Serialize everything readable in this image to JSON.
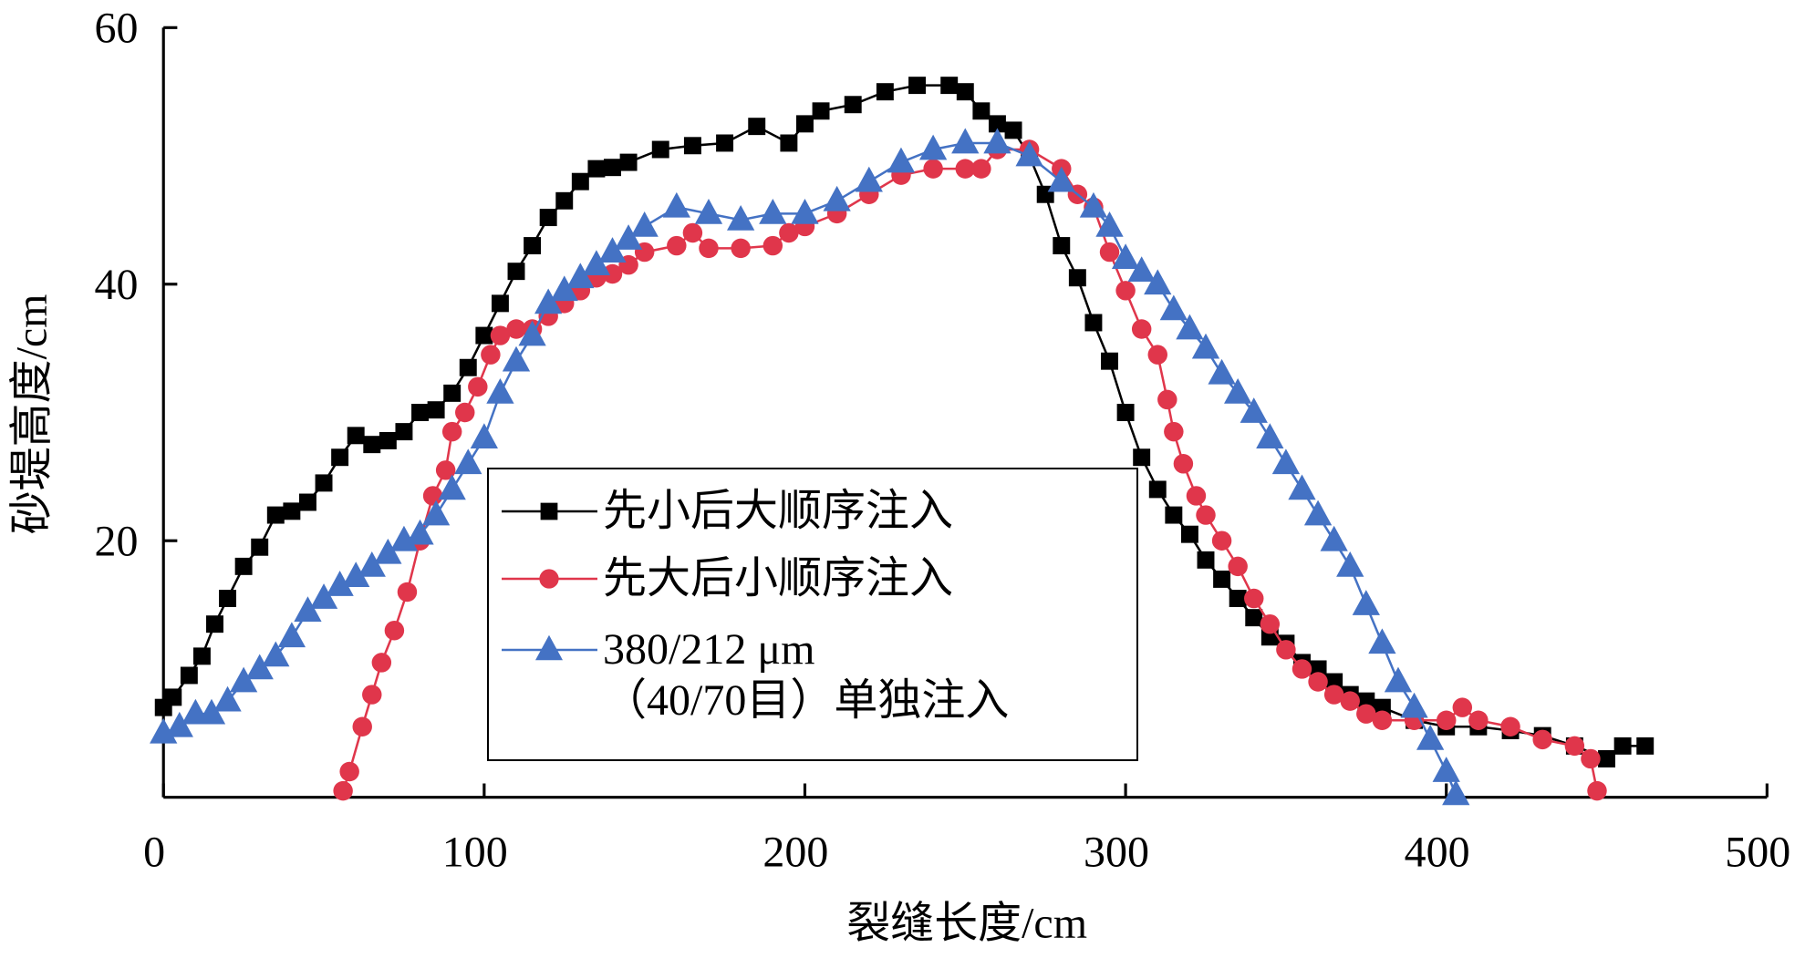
{
  "chart_data": {
    "type": "line",
    "xlabel": "裂缝长度/cm",
    "ylabel": "砂堤高度/cm",
    "xlim": [
      0,
      500
    ],
    "ylim": [
      0,
      60
    ],
    "xticks": [
      0,
      100,
      200,
      300,
      400,
      500
    ],
    "yticks": [
      20,
      40,
      60
    ],
    "series": [
      {
        "name": "先小后大顺序注入",
        "color": "#000000",
        "marker": "square",
        "x": [
          0,
          3,
          8,
          12,
          16,
          20,
          25,
          30,
          35,
          40,
          45,
          50,
          55,
          60,
          65,
          70,
          75,
          80,
          85,
          90,
          95,
          100,
          105,
          110,
          115,
          120,
          125,
          130,
          135,
          140,
          145,
          155,
          165,
          175,
          185,
          195,
          200,
          205,
          215,
          225,
          235,
          245,
          250,
          255,
          260,
          265,
          270,
          275,
          280,
          285,
          290,
          295,
          300,
          305,
          310,
          315,
          320,
          325,
          330,
          335,
          340,
          345,
          350,
          355,
          360,
          365,
          370,
          375,
          380,
          390,
          400,
          410,
          420,
          430,
          440,
          450,
          455,
          462
        ],
        "values": [
          7,
          7.8,
          9.5,
          11,
          13.5,
          15.5,
          18,
          19.5,
          22,
          22.3,
          23,
          24.5,
          26.5,
          28.2,
          27.5,
          27.8,
          28.5,
          30,
          30.2,
          31.5,
          33.5,
          36,
          38.5,
          41,
          43,
          45.2,
          46.5,
          48,
          49,
          49.1,
          49.5,
          50.5,
          50.8,
          51,
          52.3,
          51,
          52.5,
          53.5,
          54,
          55,
          55.5,
          55.5,
          55,
          53.5,
          52.5,
          52,
          50,
          47,
          43,
          40.5,
          37,
          34,
          30,
          26.5,
          24,
          22,
          20.5,
          18.5,
          17,
          15.5,
          14,
          12.5,
          12,
          10.5,
          10,
          9,
          8,
          7.5,
          7,
          6,
          5.5,
          5.5,
          5.2,
          4.8,
          4,
          3,
          4,
          4
        ]
      },
      {
        "name": "先大后小顺序注入",
        "color": "#e0364b",
        "marker": "circle",
        "x": [
          56,
          58,
          62,
          65,
          68,
          72,
          76,
          80,
          84,
          88,
          90,
          94,
          98,
          102,
          105,
          110,
          115,
          120,
          125,
          130,
          135,
          140,
          145,
          150,
          160,
          165,
          170,
          180,
          190,
          195,
          200,
          210,
          220,
          230,
          240,
          250,
          255,
          260,
          270,
          280,
          285,
          290,
          295,
          300,
          305,
          310,
          313,
          315,
          318,
          322,
          325,
          330,
          335,
          340,
          345,
          350,
          355,
          360,
          365,
          370,
          375,
          380,
          390,
          400,
          405,
          410,
          420,
          430,
          440,
          445,
          447
        ],
        "values": [
          0.5,
          2,
          5.5,
          8,
          10.5,
          13,
          16,
          20,
          23.5,
          25.5,
          28.5,
          30,
          32,
          34.5,
          36,
          36.5,
          36.5,
          37.5,
          38.5,
          39.5,
          40.5,
          40.8,
          41.5,
          42.5,
          43,
          44,
          42.8,
          42.8,
          43,
          44,
          44.5,
          45.5,
          47,
          48.5,
          49,
          49,
          49,
          50.5,
          50.5,
          49,
          47,
          46,
          42.5,
          39.5,
          36.5,
          34.5,
          31,
          28.5,
          26,
          23.5,
          22,
          20,
          18,
          15.5,
          13.5,
          11.5,
          10,
          9,
          8,
          7.5,
          6.5,
          6,
          6,
          6,
          7,
          6,
          5.5,
          4.5,
          4,
          3,
          0.5
        ]
      },
      {
        "name": "380/212 μm\n（40/70目）单独注入",
        "color": "#4472c4",
        "marker": "triangle",
        "x": [
          0,
          5,
          10,
          15,
          20,
          25,
          30,
          35,
          40,
          45,
          50,
          55,
          60,
          65,
          70,
          75,
          80,
          85,
          90,
          95,
          100,
          105,
          110,
          115,
          120,
          125,
          130,
          135,
          140,
          145,
          150,
          160,
          170,
          180,
          190,
          200,
          210,
          220,
          230,
          240,
          250,
          260,
          270,
          280,
          290,
          295,
          300,
          305,
          310,
          315,
          320,
          325,
          330,
          335,
          340,
          345,
          350,
          355,
          360,
          365,
          370,
          375,
          380,
          385,
          390,
          395,
          400,
          403
        ],
        "values": [
          5,
          5.5,
          6.5,
          6.5,
          7.5,
          9,
          10,
          11,
          12.5,
          14.5,
          15.5,
          16.5,
          17.2,
          18,
          19,
          20,
          20.5,
          22,
          24,
          26,
          28,
          31.5,
          34,
          36,
          38.5,
          39.5,
          40.5,
          41.5,
          42.5,
          43.5,
          44.5,
          46,
          45.5,
          45,
          45.5,
          45.5,
          46.5,
          48,
          49.5,
          50.5,
          51,
          51,
          50,
          48,
          46,
          44.5,
          42,
          41,
          40,
          38,
          36.5,
          35,
          33,
          31.5,
          30,
          28,
          26,
          24,
          22,
          20,
          18,
          15,
          12,
          9,
          7,
          4.5,
          2,
          0.2
        ]
      }
    ]
  }
}
